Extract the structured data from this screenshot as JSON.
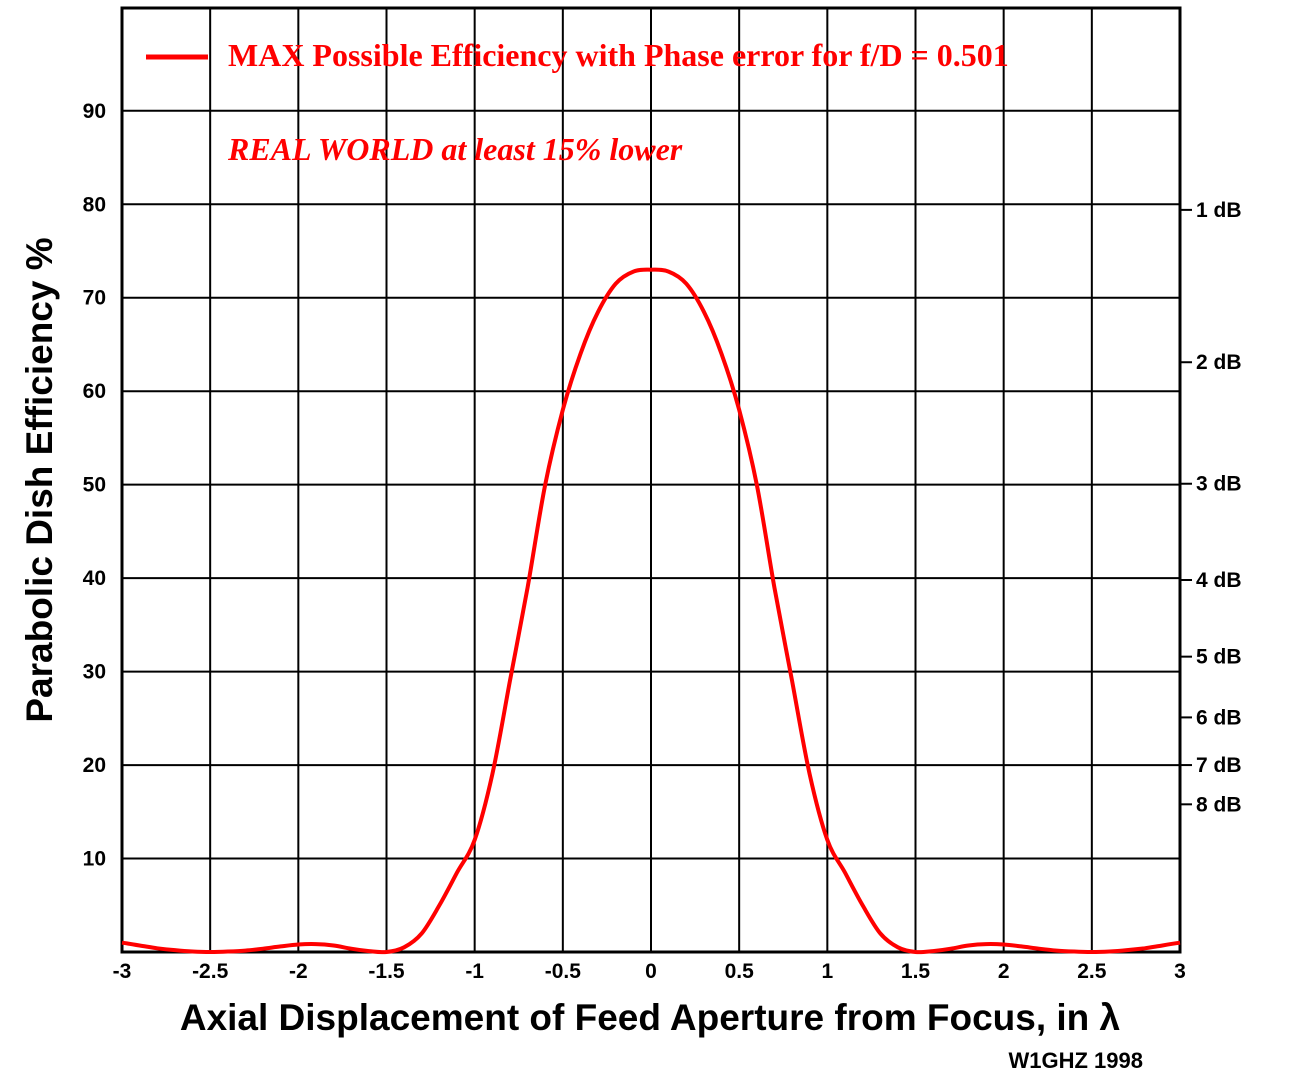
{
  "chart_data": {
    "type": "line",
    "xlabel": "Axial Displacement of Feed Aperture from Focus, in λ",
    "ylabel": "Parabolic Dish Efficiency %",
    "xlim": [
      -3,
      3
    ],
    "ylim": [
      0,
      101
    ],
    "x_ticks": [
      -3,
      -2.5,
      -2,
      -1.5,
      -1,
      -0.5,
      0,
      0.5,
      1,
      1.5,
      2,
      2.5,
      3
    ],
    "x_tick_labels": [
      "-3",
      "-2.5",
      "-2",
      "-1.5",
      "-1",
      "-0.5",
      "0",
      "0.5",
      "1",
      "1.5",
      "2",
      "2.5",
      "3"
    ],
    "y_ticks": [
      10,
      20,
      30,
      40,
      50,
      60,
      70,
      80,
      90
    ],
    "y_tick_labels": [
      "10",
      "20",
      "30",
      "40",
      "50",
      "60",
      "70",
      "80",
      "90"
    ],
    "right_axis": {
      "label": "dB",
      "ticks": [
        {
          "value": 79.4,
          "label": "1 dB"
        },
        {
          "value": 63.1,
          "label": "2 dB"
        },
        {
          "value": 50.1,
          "label": "3 dB"
        },
        {
          "value": 39.8,
          "label": "4 dB"
        },
        {
          "value": 31.6,
          "label": "5 dB"
        },
        {
          "value": 25.1,
          "label": "6 dB"
        },
        {
          "value": 20.0,
          "label": "7 dB"
        },
        {
          "value": 15.8,
          "label": "8 dB"
        }
      ]
    },
    "grid": true,
    "legend_position": "top-left",
    "series": [
      {
        "name": "MAX Possible Efficiency with Phase error for f/D = 0.501",
        "color": "#ff0000",
        "x": [
          -3,
          -2.9,
          -2.8,
          -2.7,
          -2.6,
          -2.5,
          -2.4,
          -2.3,
          -2.2,
          -2.1,
          -2.0,
          -1.9,
          -1.8,
          -1.7,
          -1.6,
          -1.5,
          -1.4,
          -1.3,
          -1.2,
          -1.1,
          -1.0,
          -0.9,
          -0.8,
          -0.7,
          -0.6,
          -0.5,
          -0.4,
          -0.3,
          -0.2,
          -0.1,
          0,
          0.1,
          0.2,
          0.3,
          0.4,
          0.5,
          0.6,
          0.7,
          0.8,
          0.9,
          1.0,
          1.1,
          1.2,
          1.3,
          1.4,
          1.5,
          1.6,
          1.7,
          1.8,
          1.9,
          2.0,
          2.1,
          2.2,
          2.3,
          2.4,
          2.5,
          2.6,
          2.7,
          2.8,
          2.9,
          3
        ],
        "y": [
          1.0,
          0.7,
          0.4,
          0.2,
          0.05,
          0.0,
          0.05,
          0.15,
          0.35,
          0.6,
          0.8,
          0.85,
          0.7,
          0.35,
          0.1,
          0.0,
          0.5,
          2.0,
          5.0,
          8.5,
          12.0,
          19.0,
          29.0,
          39.0,
          50.0,
          58.0,
          64.0,
          68.5,
          71.5,
          72.8,
          73.0,
          72.8,
          71.5,
          68.5,
          64.0,
          58.0,
          50.0,
          39.0,
          29.0,
          19.0,
          12.0,
          8.5,
          5.0,
          2.0,
          0.5,
          0.0,
          0.1,
          0.35,
          0.7,
          0.85,
          0.8,
          0.6,
          0.35,
          0.15,
          0.05,
          0.0,
          0.05,
          0.2,
          0.4,
          0.7,
          1.0
        ]
      }
    ]
  },
  "annotations": {
    "legend_text": "MAX Possible Efficiency with Phase error for f/D = 0.501",
    "note": "REAL WORLD at least 15% lower",
    "credit": "W1GHZ 1998"
  }
}
